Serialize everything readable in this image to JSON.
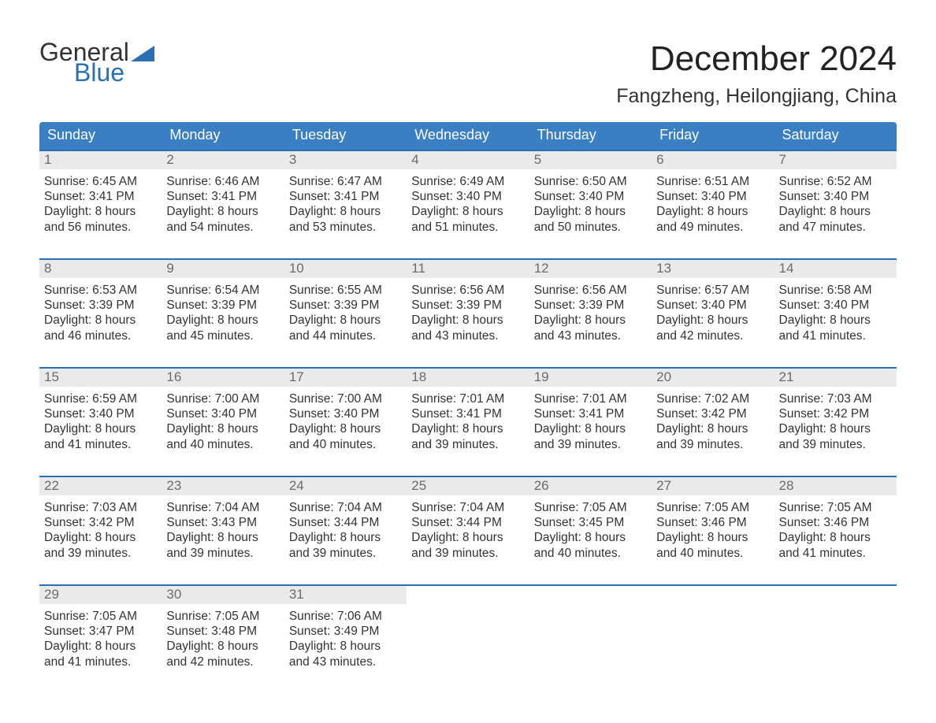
{
  "brand": {
    "general": "General",
    "blue": "Blue"
  },
  "colors": {
    "header_bar": "#3a7fc4",
    "week_rule": "#2a6fb5",
    "daynum_bg": "#eaeaea",
    "daynum_color": "#6b6b6b",
    "text": "#333333",
    "background": "#ffffff",
    "logo_blue": "#2a6fb5"
  },
  "typography": {
    "family": "Arial, Helvetica, sans-serif",
    "month_title_pt": 44,
    "location_pt": 25,
    "weekday_pt": 18,
    "body_pt": 15.5,
    "daynum_pt": 17
  },
  "title": "December 2024",
  "location": "Fangzheng, Heilongjiang, China",
  "weekdays": [
    "Sunday",
    "Monday",
    "Tuesday",
    "Wednesday",
    "Thursday",
    "Friday",
    "Saturday"
  ],
  "labels": {
    "sunrise": "Sunrise:",
    "sunset": "Sunset:",
    "daylight_prefix": "Daylight:",
    "and_minutes_suffix": "minutes."
  },
  "weeks": [
    [
      {
        "n": "1",
        "sr": "6:45 AM",
        "ss": "3:41 PM",
        "dl1": "8 hours",
        "dl2": "and 56 minutes."
      },
      {
        "n": "2",
        "sr": "6:46 AM",
        "ss": "3:41 PM",
        "dl1": "8 hours",
        "dl2": "and 54 minutes."
      },
      {
        "n": "3",
        "sr": "6:47 AM",
        "ss": "3:41 PM",
        "dl1": "8 hours",
        "dl2": "and 53 minutes."
      },
      {
        "n": "4",
        "sr": "6:49 AM",
        "ss": "3:40 PM",
        "dl1": "8 hours",
        "dl2": "and 51 minutes."
      },
      {
        "n": "5",
        "sr": "6:50 AM",
        "ss": "3:40 PM",
        "dl1": "8 hours",
        "dl2": "and 50 minutes."
      },
      {
        "n": "6",
        "sr": "6:51 AM",
        "ss": "3:40 PM",
        "dl1": "8 hours",
        "dl2": "and 49 minutes."
      },
      {
        "n": "7",
        "sr": "6:52 AM",
        "ss": "3:40 PM",
        "dl1": "8 hours",
        "dl2": "and 47 minutes."
      }
    ],
    [
      {
        "n": "8",
        "sr": "6:53 AM",
        "ss": "3:39 PM",
        "dl1": "8 hours",
        "dl2": "and 46 minutes."
      },
      {
        "n": "9",
        "sr": "6:54 AM",
        "ss": "3:39 PM",
        "dl1": "8 hours",
        "dl2": "and 45 minutes."
      },
      {
        "n": "10",
        "sr": "6:55 AM",
        "ss": "3:39 PM",
        "dl1": "8 hours",
        "dl2": "and 44 minutes."
      },
      {
        "n": "11",
        "sr": "6:56 AM",
        "ss": "3:39 PM",
        "dl1": "8 hours",
        "dl2": "and 43 minutes."
      },
      {
        "n": "12",
        "sr": "6:56 AM",
        "ss": "3:39 PM",
        "dl1": "8 hours",
        "dl2": "and 43 minutes."
      },
      {
        "n": "13",
        "sr": "6:57 AM",
        "ss": "3:40 PM",
        "dl1": "8 hours",
        "dl2": "and 42 minutes."
      },
      {
        "n": "14",
        "sr": "6:58 AM",
        "ss": "3:40 PM",
        "dl1": "8 hours",
        "dl2": "and 41 minutes."
      }
    ],
    [
      {
        "n": "15",
        "sr": "6:59 AM",
        "ss": "3:40 PM",
        "dl1": "8 hours",
        "dl2": "and 41 minutes."
      },
      {
        "n": "16",
        "sr": "7:00 AM",
        "ss": "3:40 PM",
        "dl1": "8 hours",
        "dl2": "and 40 minutes."
      },
      {
        "n": "17",
        "sr": "7:00 AM",
        "ss": "3:40 PM",
        "dl1": "8 hours",
        "dl2": "and 40 minutes."
      },
      {
        "n": "18",
        "sr": "7:01 AM",
        "ss": "3:41 PM",
        "dl1": "8 hours",
        "dl2": "and 39 minutes."
      },
      {
        "n": "19",
        "sr": "7:01 AM",
        "ss": "3:41 PM",
        "dl1": "8 hours",
        "dl2": "and 39 minutes."
      },
      {
        "n": "20",
        "sr": "7:02 AM",
        "ss": "3:42 PM",
        "dl1": "8 hours",
        "dl2": "and 39 minutes."
      },
      {
        "n": "21",
        "sr": "7:03 AM",
        "ss": "3:42 PM",
        "dl1": "8 hours",
        "dl2": "and 39 minutes."
      }
    ],
    [
      {
        "n": "22",
        "sr": "7:03 AM",
        "ss": "3:42 PM",
        "dl1": "8 hours",
        "dl2": "and 39 minutes."
      },
      {
        "n": "23",
        "sr": "7:04 AM",
        "ss": "3:43 PM",
        "dl1": "8 hours",
        "dl2": "and 39 minutes."
      },
      {
        "n": "24",
        "sr": "7:04 AM",
        "ss": "3:44 PM",
        "dl1": "8 hours",
        "dl2": "and 39 minutes."
      },
      {
        "n": "25",
        "sr": "7:04 AM",
        "ss": "3:44 PM",
        "dl1": "8 hours",
        "dl2": "and 39 minutes."
      },
      {
        "n": "26",
        "sr": "7:05 AM",
        "ss": "3:45 PM",
        "dl1": "8 hours",
        "dl2": "and 40 minutes."
      },
      {
        "n": "27",
        "sr": "7:05 AM",
        "ss": "3:46 PM",
        "dl1": "8 hours",
        "dl2": "and 40 minutes."
      },
      {
        "n": "28",
        "sr": "7:05 AM",
        "ss": "3:46 PM",
        "dl1": "8 hours",
        "dl2": "and 41 minutes."
      }
    ],
    [
      {
        "n": "29",
        "sr": "7:05 AM",
        "ss": "3:47 PM",
        "dl1": "8 hours",
        "dl2": "and 41 minutes."
      },
      {
        "n": "30",
        "sr": "7:05 AM",
        "ss": "3:48 PM",
        "dl1": "8 hours",
        "dl2": "and 42 minutes."
      },
      {
        "n": "31",
        "sr": "7:06 AM",
        "ss": "3:49 PM",
        "dl1": "8 hours",
        "dl2": "and 43 minutes."
      },
      {
        "empty": true
      },
      {
        "empty": true
      },
      {
        "empty": true
      },
      {
        "empty": true
      }
    ]
  ]
}
